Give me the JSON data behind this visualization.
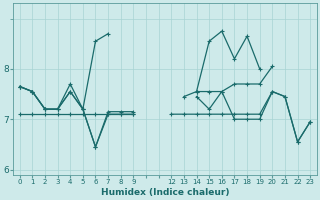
{
  "xlabel": "Humidex (Indice chaleur)",
  "xlim": [
    -0.5,
    23.5
  ],
  "ylim": [
    5.9,
    9.3
  ],
  "yticks": [
    6,
    7,
    8
  ],
  "xtick_positions": [
    0,
    1,
    2,
    3,
    4,
    5,
    6,
    7,
    8,
    9,
    12,
    13,
    14,
    15,
    16,
    17,
    18,
    19,
    20,
    21,
    22,
    23
  ],
  "background_color": "#ceeaea",
  "line_color": "#1a6b6b",
  "series": [
    {
      "segments": [
        {
          "x": [
            0,
            1,
            2,
            3,
            4,
            5,
            6,
            7,
            8,
            9
          ],
          "y": [
            7.65,
            7.55,
            7.2,
            7.2,
            7.55,
            7.2,
            6.45,
            7.1,
            7.1,
            7.1
          ]
        },
        {
          "x": [
            14,
            15,
            16,
            17,
            18,
            19,
            20,
            21,
            22,
            23
          ],
          "y": [
            7.45,
            7.2,
            7.55,
            7.0,
            7.0,
            7.0,
            7.55,
            7.45,
            6.55,
            6.95
          ]
        }
      ]
    },
    {
      "segments": [
        {
          "x": [
            0,
            1,
            2,
            3,
            4,
            5,
            6,
            7
          ],
          "y": [
            7.65,
            7.55,
            7.2,
            7.2,
            7.7,
            7.2,
            8.55,
            8.7
          ]
        },
        {
          "x": [
            14,
            15,
            16,
            17,
            18,
            19
          ],
          "y": [
            7.55,
            8.55,
            8.75,
            8.2,
            8.65,
            8.0
          ]
        }
      ]
    },
    {
      "segments": [
        {
          "x": [
            0,
            1,
            2,
            3,
            4,
            5,
            6,
            7,
            8,
            9
          ],
          "y": [
            7.65,
            7.55,
            7.2,
            7.2,
            7.55,
            7.2,
            6.45,
            7.15,
            7.15,
            7.15
          ]
        },
        {
          "x": [
            13,
            14,
            15,
            16,
            17,
            18,
            19,
            20
          ],
          "y": [
            7.45,
            7.55,
            7.55,
            7.55,
            7.7,
            7.7,
            7.7,
            8.05
          ]
        }
      ]
    },
    {
      "segments": [
        {
          "x": [
            0,
            1,
            2,
            3,
            4,
            5,
            6,
            7,
            8,
            9
          ],
          "y": [
            7.1,
            7.1,
            7.1,
            7.1,
            7.1,
            7.1,
            7.1,
            7.1,
            7.1,
            7.1
          ]
        },
        {
          "x": [
            12,
            13,
            14,
            15,
            16,
            17,
            18,
            19,
            20,
            21,
            22,
            23
          ],
          "y": [
            7.1,
            7.1,
            7.1,
            7.1,
            7.1,
            7.1,
            7.1,
            7.1,
            7.55,
            7.45,
            6.55,
            6.95
          ]
        }
      ]
    }
  ]
}
